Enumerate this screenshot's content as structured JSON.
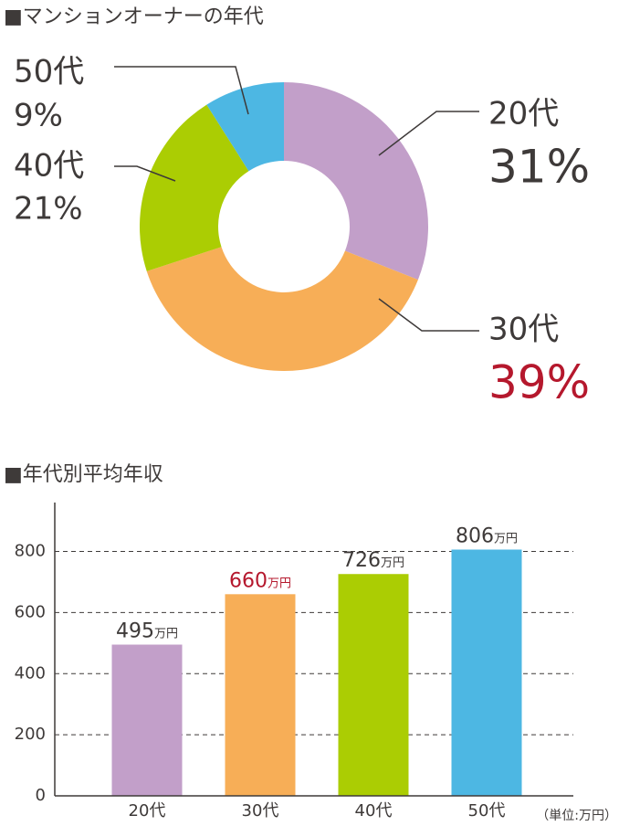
{
  "chart_data": [
    {
      "type": "pie",
      "title": "■マンションオーナーの年代",
      "categories": [
        "20代",
        "30代",
        "40代",
        "50代"
      ],
      "values": [
        31,
        39,
        21,
        9
      ],
      "value_labels": [
        "31%",
        "39%",
        "21%",
        "9%"
      ],
      "colors": [
        "#c29fc9",
        "#f7ae57",
        "#abcd03",
        "#4db7e3"
      ],
      "highlight_index": 1,
      "highlight_color": "#b5182d",
      "donut": true
    },
    {
      "type": "bar",
      "title": "■年代別平均年収",
      "categories": [
        "20代",
        "30代",
        "40代",
        "50代"
      ],
      "values": [
        495,
        660,
        726,
        806
      ],
      "value_labels": [
        "495万円",
        "660万円",
        "726万円",
        "806万円"
      ],
      "colors": [
        "#c29fc9",
        "#f7ae57",
        "#abcd03",
        "#4db7e3"
      ],
      "highlight_index": 1,
      "highlight_color": "#b5182d",
      "ylim": [
        0,
        960
      ],
      "yticks": [
        0,
        200,
        400,
        600,
        800
      ],
      "grid": true,
      "unit_note": "（単位:万円）"
    }
  ]
}
